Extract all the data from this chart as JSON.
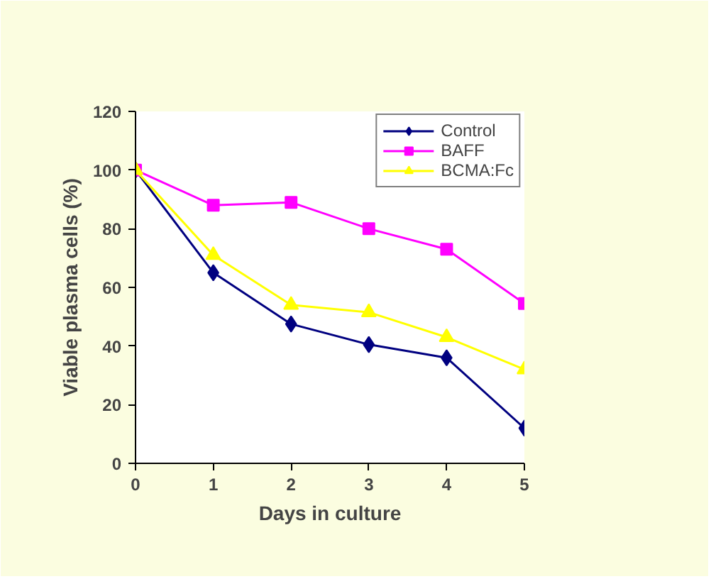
{
  "chart_data": {
    "type": "line",
    "xlabel": "Days in culture",
    "ylabel": "Viable plasma cells (%)",
    "x": [
      0,
      1,
      2,
      3,
      4,
      5
    ],
    "series": [
      {
        "name": "Control",
        "color": "#000080",
        "marker": "diamond",
        "values": [
          100,
          65,
          47.5,
          40.5,
          36,
          12
        ]
      },
      {
        "name": "BAFF",
        "color": "#ff00ff",
        "marker": "square",
        "values": [
          100,
          88,
          89,
          80,
          73,
          54.5
        ]
      },
      {
        "name": "BCMA:Fc",
        "color": "#ffff00",
        "marker": "triangle",
        "values": [
          100,
          71,
          54,
          51.5,
          43,
          32
        ]
      }
    ],
    "xlim": [
      0,
      5
    ],
    "xticks": [
      0,
      1,
      2,
      3,
      4,
      5
    ],
    "ylim": [
      0,
      120
    ],
    "yticks": [
      0,
      20,
      40,
      60,
      80,
      100,
      120
    ],
    "grid": false,
    "legend": "top right",
    "line_style": "solid"
  }
}
